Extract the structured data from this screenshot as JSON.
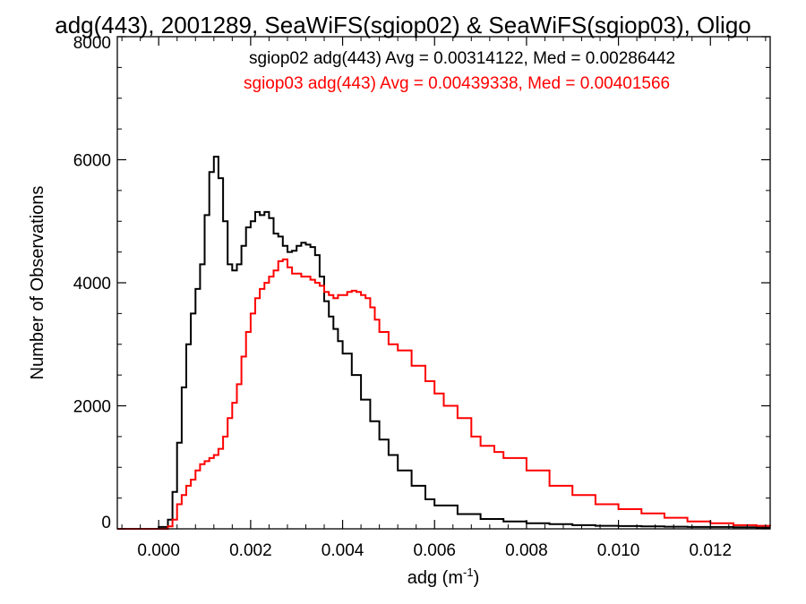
{
  "chart_data": {
    "type": "line",
    "title": "adg(443), 2001289, SeaWiFS(sgiop02) & SeaWiFS(sgiop03), Oligo",
    "xlabel": "adg (m",
    "xlabel_sup": "-1",
    "xlabel_close": ")",
    "ylabel": "Number of Observations",
    "xlim": [
      -0.0009,
      0.0133
    ],
    "ylim": [
      0,
      8000
    ],
    "xticks": [
      "0.000",
      "0.002",
      "0.004",
      "0.006",
      "0.008",
      "0.010",
      "0.012"
    ],
    "xtick_values": [
      0,
      0.002,
      0.004,
      0.006,
      0.008,
      0.01,
      0.012
    ],
    "yticks": [
      "0",
      "2000",
      "4000",
      "6000",
      "8000"
    ],
    "ytick_values": [
      0,
      2000,
      4000,
      6000,
      8000
    ],
    "grid": false,
    "legend_position": "top-right",
    "series": [
      {
        "name": "sgiop02",
        "label": "sgiop02 adg(443) Avg = 0.00314122, Med = 0.00286442",
        "color": "#000000",
        "x": [
          -0.0009,
          -0.0005,
          -0.0003,
          0.0,
          0.0002,
          0.0003,
          0.0004,
          0.0005,
          0.0006,
          0.0007,
          0.0008,
          0.0009,
          0.001,
          0.0011,
          0.0012,
          0.0013,
          0.0014,
          0.0015,
          0.0016,
          0.0017,
          0.0018,
          0.0019,
          0.002,
          0.0021,
          0.0022,
          0.0023,
          0.0024,
          0.0025,
          0.0026,
          0.0027,
          0.0028,
          0.0029,
          0.003,
          0.0031,
          0.0032,
          0.0033,
          0.0034,
          0.0035,
          0.0036,
          0.0037,
          0.0038,
          0.0039,
          0.004,
          0.0042,
          0.0044,
          0.0046,
          0.0048,
          0.005,
          0.0052,
          0.0055,
          0.0058,
          0.006,
          0.0065,
          0.007,
          0.0075,
          0.008,
          0.0085,
          0.009,
          0.0095,
          0.01,
          0.0105,
          0.011,
          0.0115,
          0.012,
          0.0125,
          0.013,
          0.0133
        ],
        "y": [
          0,
          0,
          0,
          30,
          150,
          600,
          1400,
          2300,
          3000,
          3500,
          3900,
          4300,
          5100,
          5800,
          6050,
          5700,
          5000,
          4300,
          4200,
          4300,
          4600,
          4900,
          5000,
          5150,
          5100,
          5150,
          5050,
          4800,
          4750,
          4600,
          4500,
          4520,
          4600,
          4650,
          4620,
          4580,
          4450,
          4100,
          3700,
          3450,
          3250,
          3050,
          2850,
          2500,
          2100,
          1750,
          1450,
          1200,
          950,
          700,
          480,
          380,
          240,
          160,
          120,
          90,
          75,
          60,
          50,
          45,
          40,
          35,
          30,
          30,
          25,
          20,
          20
        ]
      },
      {
        "name": "sgiop03",
        "label": "sgiop03 adg(443) Avg = 0.00439338, Med = 0.00401566",
        "color": "#ff0000",
        "x": [
          -0.0009,
          -0.0005,
          -0.0003,
          0.0,
          0.0002,
          0.0003,
          0.0004,
          0.0005,
          0.0006,
          0.0007,
          0.0008,
          0.0009,
          0.001,
          0.0011,
          0.0012,
          0.0013,
          0.0014,
          0.0015,
          0.0016,
          0.0017,
          0.0018,
          0.0019,
          0.002,
          0.0021,
          0.0022,
          0.0023,
          0.0024,
          0.0025,
          0.0026,
          0.0027,
          0.0028,
          0.0029,
          0.003,
          0.0031,
          0.0032,
          0.0033,
          0.0034,
          0.0035,
          0.0036,
          0.0037,
          0.0038,
          0.0039,
          0.004,
          0.0041,
          0.0042,
          0.0043,
          0.0044,
          0.0045,
          0.0046,
          0.0047,
          0.0048,
          0.005,
          0.0052,
          0.0055,
          0.0058,
          0.006,
          0.0062,
          0.0065,
          0.0068,
          0.007,
          0.0073,
          0.0075,
          0.008,
          0.0085,
          0.009,
          0.0095,
          0.01,
          0.0105,
          0.011,
          0.0115,
          0.012,
          0.0125,
          0.013,
          0.0133
        ],
        "y": [
          0,
          0,
          0,
          0,
          40,
          150,
          400,
          550,
          700,
          800,
          950,
          1050,
          1100,
          1150,
          1200,
          1300,
          1500,
          1800,
          2050,
          2350,
          2800,
          3200,
          3500,
          3750,
          3900,
          4000,
          4100,
          4200,
          4350,
          4380,
          4250,
          4150,
          4150,
          4100,
          4100,
          4050,
          4000,
          3950,
          3850,
          3800,
          3750,
          3800,
          3800,
          3850,
          3870,
          3850,
          3800,
          3750,
          3600,
          3400,
          3200,
          3000,
          2900,
          2650,
          2400,
          2200,
          2000,
          1800,
          1500,
          1350,
          1250,
          1150,
          950,
          700,
          550,
          400,
          320,
          250,
          180,
          120,
          90,
          60,
          50,
          40
        ]
      }
    ]
  }
}
